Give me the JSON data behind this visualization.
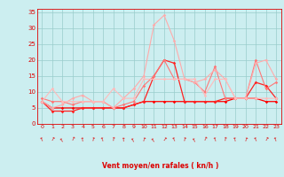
{
  "x": [
    0,
    1,
    2,
    3,
    4,
    5,
    6,
    7,
    8,
    9,
    10,
    11,
    12,
    13,
    14,
    15,
    16,
    17,
    18,
    19,
    20,
    21,
    22,
    23
  ],
  "lines": [
    {
      "color": "#ff0000",
      "lw": 0.9,
      "marker": "D",
      "ms": 1.8,
      "values": [
        7,
        5,
        5,
        5,
        5,
        5,
        5,
        5,
        5,
        6,
        7,
        7,
        7,
        7,
        7,
        7,
        7,
        7,
        7,
        8,
        8,
        8,
        7,
        7
      ]
    },
    {
      "color": "#ff2222",
      "lw": 0.9,
      "marker": "D",
      "ms": 1.8,
      "values": [
        7,
        4,
        4,
        4,
        5,
        5,
        5,
        5,
        5,
        6,
        7,
        15,
        20,
        19,
        7,
        7,
        7,
        7,
        8,
        8,
        8,
        13,
        12,
        8
      ]
    },
    {
      "color": "#ff7777",
      "lw": 0.8,
      "marker": "D",
      "ms": 1.8,
      "values": [
        8,
        7,
        7,
        6,
        7,
        7,
        7,
        5,
        6,
        7,
        12,
        15,
        20,
        14,
        14,
        13,
        10,
        18,
        8,
        8,
        8,
        20,
        11,
        13
      ]
    },
    {
      "color": "#ffaaaa",
      "lw": 0.8,
      "marker": "D",
      "ms": 1.8,
      "values": [
        7,
        5,
        6,
        8,
        9,
        7,
        7,
        5,
        8,
        11,
        15,
        31,
        34,
        26,
        14,
        13,
        14,
        17,
        14,
        8,
        8,
        19,
        20,
        14
      ]
    },
    {
      "color": "#ffbbbb",
      "lw": 0.8,
      "marker": "D",
      "ms": 1.8,
      "values": [
        7,
        11,
        7,
        7,
        7,
        7,
        7,
        11,
        8,
        8,
        14,
        14,
        14,
        14,
        14,
        14,
        9,
        14,
        14,
        8,
        8,
        8,
        8,
        8
      ]
    }
  ],
  "arrow_angles": [
    25,
    -30,
    35,
    -25,
    10,
    -15,
    20,
    -10,
    5,
    30,
    -20,
    35,
    -35,
    25,
    -15,
    30,
    -25,
    20,
    -10,
    15,
    -20,
    25,
    -30,
    20
  ],
  "xlim": [
    -0.5,
    23.5
  ],
  "ylim": [
    0,
    36
  ],
  "yticks": [
    0,
    5,
    10,
    15,
    20,
    25,
    30,
    35
  ],
  "xticks": [
    0,
    1,
    2,
    3,
    4,
    5,
    6,
    7,
    8,
    9,
    10,
    11,
    12,
    13,
    14,
    15,
    16,
    17,
    18,
    19,
    20,
    21,
    22,
    23
  ],
  "xlabel": "Vent moyen/en rafales ( kn/h )",
  "bg_color": "#cceef0",
  "grid_color": "#99cccc",
  "red": "#dd0000"
}
